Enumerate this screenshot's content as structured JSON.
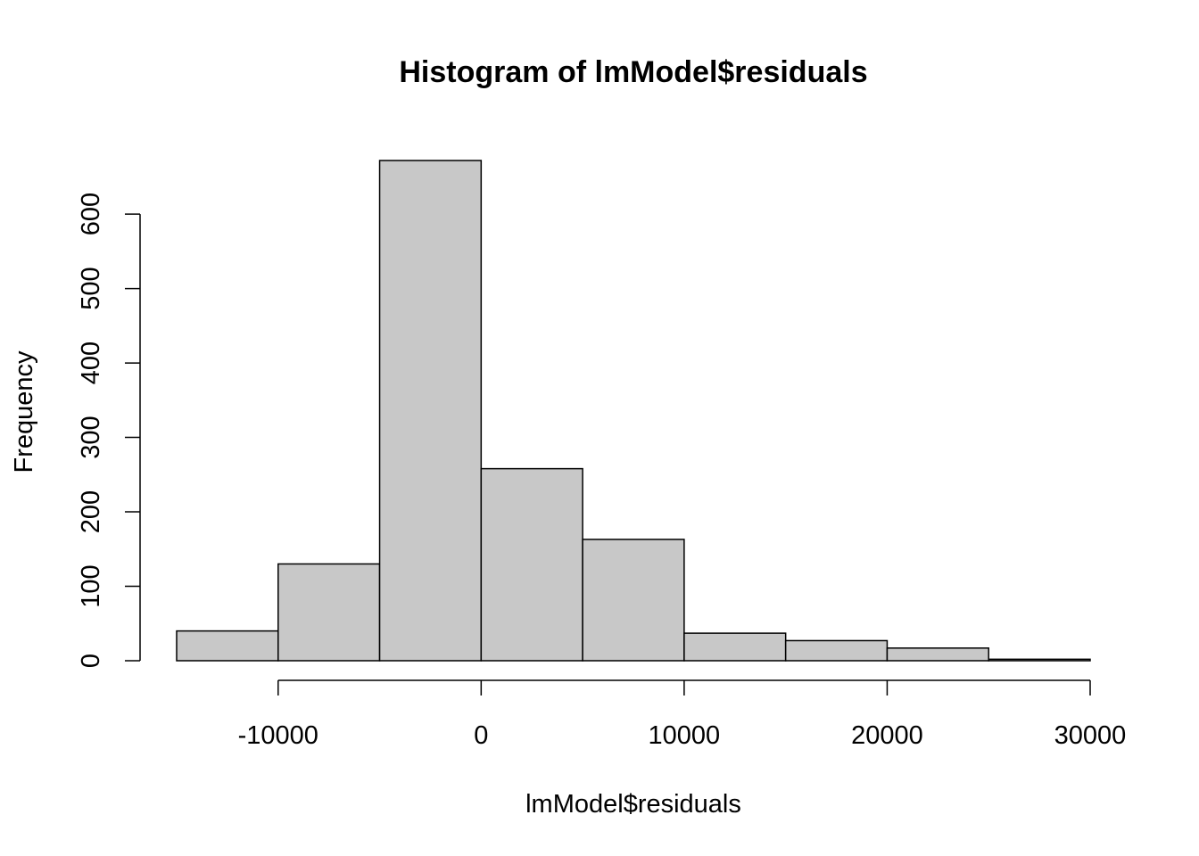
{
  "chart_data": {
    "type": "bar",
    "histogram": true,
    "title": "Histogram of lmModel$residuals",
    "xlabel": "lmModel$residuals",
    "ylabel": "Frequency",
    "bin_edges": [
      -15000,
      -10000,
      -5000,
      0,
      5000,
      10000,
      15000,
      20000,
      25000,
      30000
    ],
    "values": [
      40,
      130,
      672,
      258,
      163,
      37,
      27,
      17,
      2
    ],
    "xlim": [
      -15000,
      30000
    ],
    "ylim": [
      0,
      672
    ],
    "x_ticks": [
      -10000,
      0,
      10000,
      20000,
      30000
    ],
    "x_tick_labels": [
      "-10000",
      "0",
      "10000",
      "20000",
      "30000"
    ],
    "y_ticks": [
      0,
      100,
      200,
      300,
      400,
      500,
      600
    ],
    "y_tick_labels": [
      "0",
      "100",
      "200",
      "300",
      "400",
      "500",
      "600"
    ],
    "grid": false,
    "legend": "none",
    "bar_fill": "#c8c8c8",
    "bar_edge": "#000000"
  }
}
